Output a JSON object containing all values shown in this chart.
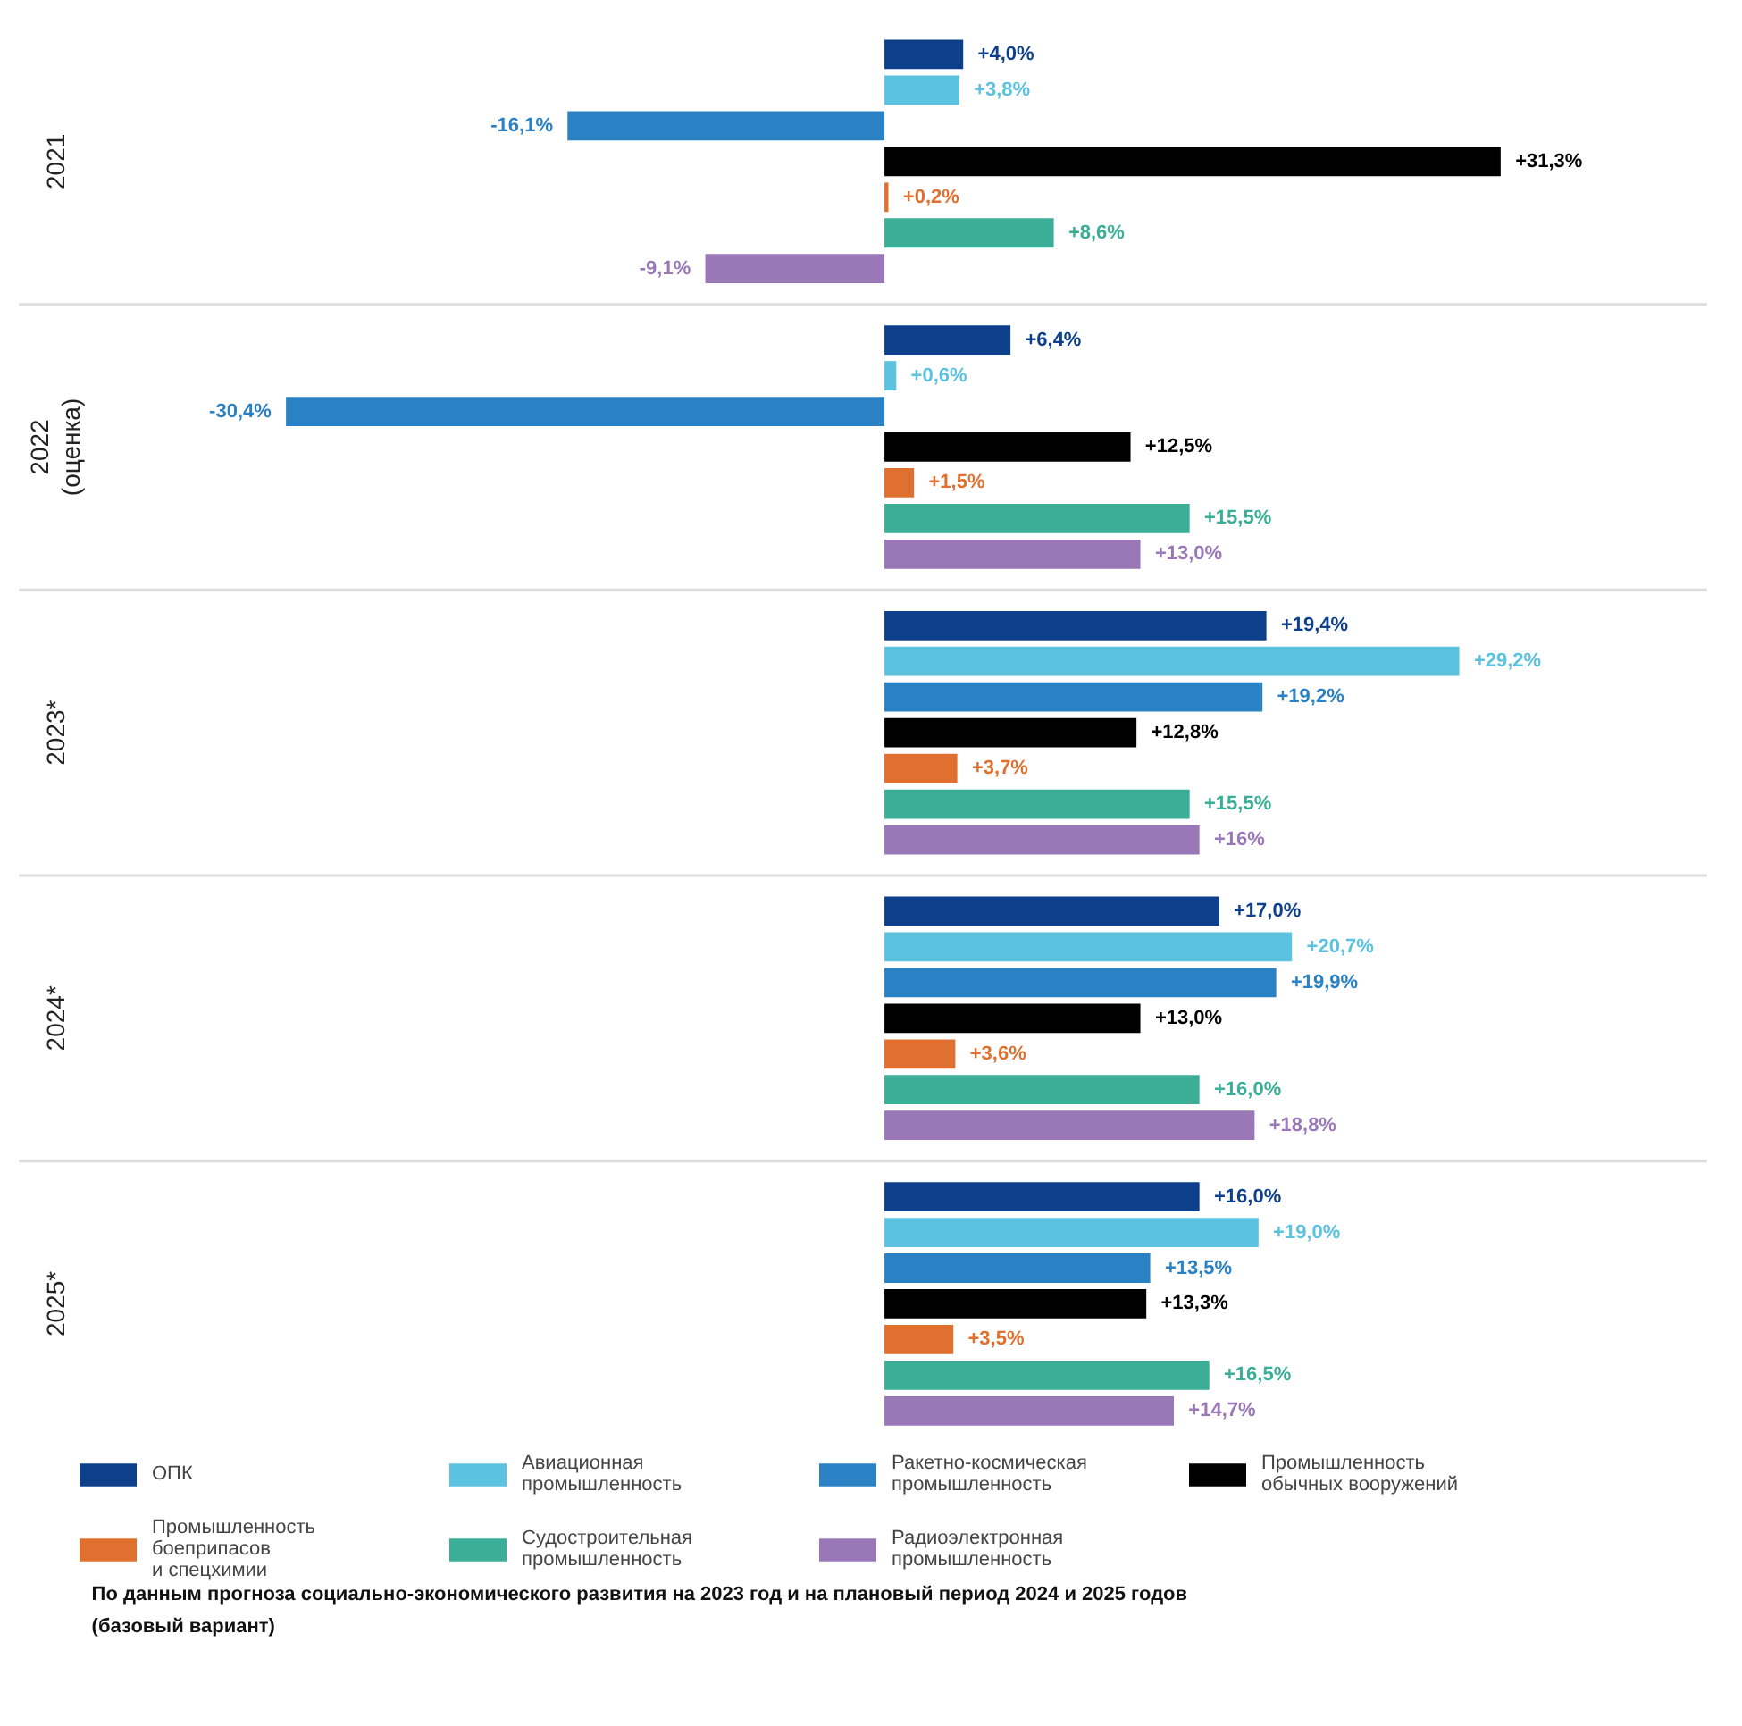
{
  "chart_data": {
    "type": "bar",
    "orientation": "horizontal",
    "categories": [
      "2021",
      "2022\n(оценка)",
      "2023*",
      "2024*",
      "2025*"
    ],
    "series": [
      {
        "name": "ОПК",
        "color": "#0d3f8a",
        "values": [
          4.0,
          6.4,
          19.4,
          17.0,
          16.0
        ],
        "value_labels": [
          "+4,0%",
          "+6,4%",
          "+19,4%",
          "+17,0%",
          "+16,0%"
        ]
      },
      {
        "name": "Авиационная\nпромышленность",
        "color": "#5bc2e0",
        "values": [
          3.8,
          0.6,
          29.2,
          20.7,
          19.0
        ],
        "value_labels": [
          "+3,8%",
          "+0,6%",
          "+29,2%",
          "+20,7%",
          "+19,0%"
        ]
      },
      {
        "name": "Ракетно-космическая\nпромышленность",
        "color": "#2a82c4",
        "values": [
          -16.1,
          -30.4,
          19.2,
          19.9,
          13.5
        ],
        "value_labels": [
          "-16,1%",
          "-30,4%",
          "+19,2%",
          "+19,9%",
          "+13,5%"
        ]
      },
      {
        "name": "Промышленность\nобычных вооружений",
        "color": "#000000",
        "values": [
          31.3,
          12.5,
          12.8,
          13.0,
          13.3
        ],
        "value_labels": [
          "+31,3%",
          "+12,5%",
          "+12,8%",
          "+13,0%",
          "+13,3%"
        ]
      },
      {
        "name": "Промышленность\nбоеприпасов\nи спецхимии",
        "color": "#e07030",
        "values": [
          0.2,
          1.5,
          3.7,
          3.6,
          3.5
        ],
        "value_labels": [
          "+0,2%",
          "+1,5%",
          "+3,7%",
          "+3,6%",
          "+3,5%"
        ]
      },
      {
        "name": "Судостроительная\nпромышленность",
        "color": "#3aae96",
        "values": [
          8.6,
          15.5,
          15.5,
          16.0,
          16.5
        ],
        "value_labels": [
          "+8,6%",
          "+15,5%",
          "+15,5%",
          "+16,0%",
          "+16,5%"
        ]
      },
      {
        "name": "Радиоэлектронная\nпромышленность",
        "color": "#9a78b8",
        "values": [
          -9.1,
          13.0,
          16,
          18.8,
          14.7
        ],
        "value_labels": [
          "-9,1%",
          "+13,0%",
          "+16%",
          "+18,8%",
          "+14,7%"
        ]
      }
    ],
    "legend": "bottom",
    "annotations": [
      "По данным прогноза социально-экономического развития на 2023 год и на плановый период 2024 и 2025 годов\n(базовый вариант)"
    ]
  }
}
